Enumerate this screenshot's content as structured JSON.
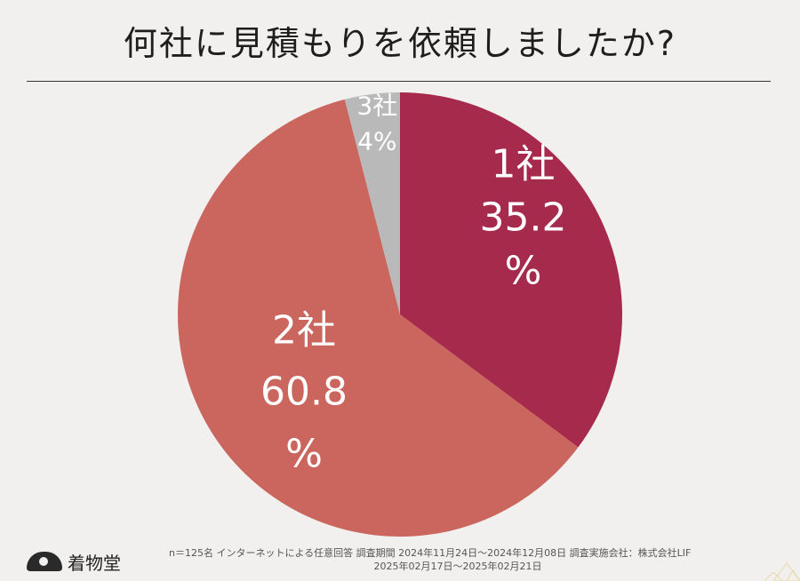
{
  "title": "何社に見積もりを依頼しましたか?",
  "chart_data": {
    "type": "pie",
    "title": "何社に見積もりを依頼しましたか?",
    "slices": [
      {
        "label": "1社",
        "value": 35.2,
        "value_text": "35.2",
        "unit": "%",
        "color": "#a52a4c"
      },
      {
        "label": "2社",
        "value": 60.8,
        "value_text": "60.8",
        "unit": "%",
        "color": "#cb665e"
      },
      {
        "label": "3社",
        "value": 4,
        "value_text": "4%",
        "unit": "",
        "color": "#b9b9b9"
      }
    ],
    "start": "12 o'clock",
    "direction": "clockwise"
  },
  "footnote": {
    "line1": "n＝125名 インターネットによる任意回答 調査期間  2024年11月24日〜2024年12月08日  調査実施会社：株式会社LIF",
    "line2": "2025年02月17日〜2025年02月21日"
  },
  "logo": {
    "text": "着物堂"
  }
}
